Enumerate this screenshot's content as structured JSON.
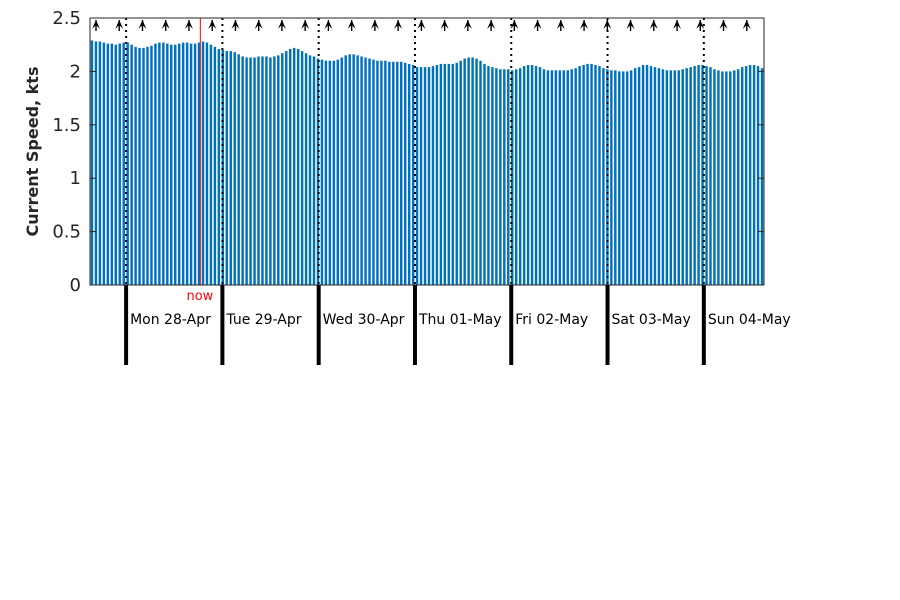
{
  "chart_data": {
    "type": "bar",
    "title": "",
    "xlabel": "",
    "ylabel": "Current Speed, kts",
    "ylim": [
      0,
      2.5
    ],
    "yticks": [
      "0",
      "0.5",
      "1",
      "1.5",
      "2",
      "2.5"
    ],
    "ytick_values": [
      0,
      0.5,
      1,
      1.5,
      2,
      2.5
    ],
    "grid": false,
    "x_unit": "hours",
    "xlim": [
      0,
      168
    ],
    "day_labels": [
      "Mon 28-Apr",
      "Tue 29-Apr",
      "Wed 30-Apr",
      "Thu 01-May",
      "Fri 02-May",
      "Sat 03-May",
      "Sun 04-May"
    ],
    "day_boundaries": [
      9,
      33,
      57,
      81,
      105,
      129,
      153
    ],
    "now_label": "now",
    "now_x": 27.5,
    "series": [
      {
        "values": [
          2.29,
          2.28,
          2.28,
          2.27,
          2.26,
          2.26,
          2.25,
          2.26,
          2.27,
          2.27,
          2.25,
          2.23,
          2.22,
          2.22,
          2.23,
          2.24,
          2.26,
          2.27,
          2.27,
          2.26,
          2.25,
          2.25,
          2.26,
          2.27,
          2.27,
          2.26,
          2.26,
          2.27,
          2.28,
          2.27,
          2.25,
          2.23,
          2.21,
          2.2,
          2.19,
          2.19,
          2.18,
          2.16,
          2.14,
          2.13,
          2.13,
          2.13,
          2.14,
          2.14,
          2.14,
          2.13,
          2.14,
          2.15,
          2.17,
          2.19,
          2.21,
          2.22,
          2.21,
          2.19,
          2.17,
          2.15,
          2.14,
          2.12,
          2.11,
          2.1,
          2.1,
          2.1,
          2.11,
          2.13,
          2.15,
          2.16,
          2.16,
          2.15,
          2.14,
          2.13,
          2.12,
          2.11,
          2.1,
          2.1,
          2.1,
          2.09,
          2.09,
          2.09,
          2.09,
          2.08,
          2.07,
          2.06,
          2.04,
          2.04,
          2.04,
          2.04,
          2.05,
          2.06,
          2.07,
          2.07,
          2.07,
          2.07,
          2.08,
          2.1,
          2.12,
          2.13,
          2.13,
          2.12,
          2.1,
          2.07,
          2.05,
          2.04,
          2.03,
          2.02,
          2.02,
          2.02,
          2.01,
          2.02,
          2.03,
          2.05,
          2.06,
          2.06,
          2.05,
          2.04,
          2.02,
          2.01,
          2.01,
          2.01,
          2.01,
          2.01,
          2.01,
          2.02,
          2.03,
          2.05,
          2.06,
          2.07,
          2.07,
          2.06,
          2.05,
          2.03,
          2.02,
          2.01,
          2.01,
          2.0,
          2.0,
          2.0,
          2.01,
          2.03,
          2.04,
          2.06,
          2.06,
          2.05,
          2.04,
          2.03,
          2.02,
          2.01,
          2.01,
          2.01,
          2.01,
          2.02,
          2.03,
          2.04,
          2.05,
          2.06,
          2.06,
          2.05,
          2.04,
          2.02,
          2.01,
          2.0,
          2.0,
          2.0,
          2.01,
          2.02,
          2.04,
          2.05,
          2.06,
          2.06,
          2.05,
          2.03
        ]
      }
    ],
    "colors": {
      "bar": "#0072bd",
      "now": "#ff0000",
      "axis": "#262626",
      "day_tick": "#000000",
      "direction_arrow": "#000000"
    },
    "direction_arrows": "black chevron arrows along the top axis, pointing up"
  }
}
